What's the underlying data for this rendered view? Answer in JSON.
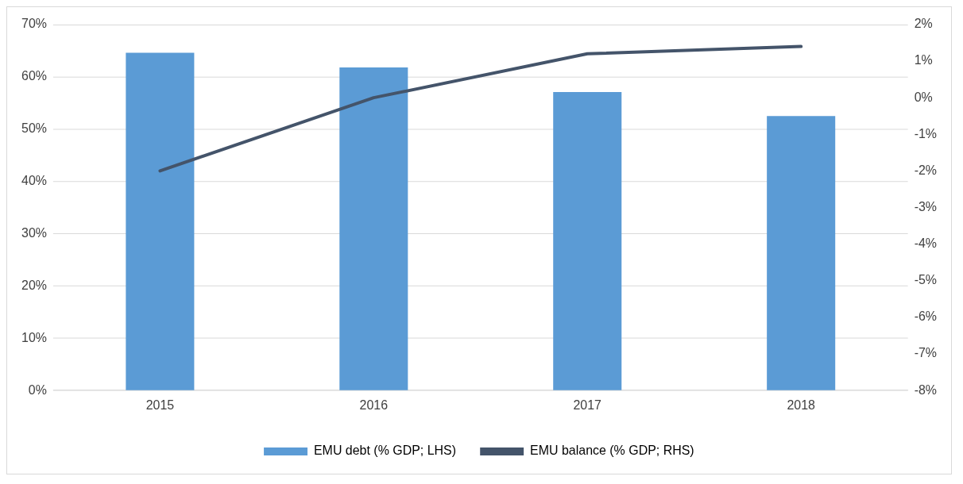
{
  "chart_data": {
    "type": "bar",
    "categories": [
      "2015",
      "2016",
      "2017",
      "2018"
    ],
    "series": [
      {
        "name": "EMU debt (% GDP; LHS)",
        "color": "#5b9bd5",
        "values": [
          64.6,
          61.8,
          57.1,
          52.5
        ]
      },
      {
        "name": "EMU balance (% GDP; RHS)",
        "type": "line",
        "axis": "y2",
        "color": "#44546a",
        "values": [
          -2.0,
          0.0,
          1.2,
          1.4
        ]
      }
    ],
    "ylim": [
      0,
      70
    ],
    "yticks": [
      {
        "value": 0,
        "label": "0%"
      },
      {
        "value": 10,
        "label": "10%"
      },
      {
        "value": 20,
        "label": "20%"
      },
      {
        "value": 30,
        "label": "30%"
      },
      {
        "value": 40,
        "label": "40%"
      },
      {
        "value": 50,
        "label": "50%"
      },
      {
        "value": 60,
        "label": "60%"
      },
      {
        "value": 70,
        "label": "70%"
      }
    ],
    "y2lim": [
      -8,
      2
    ],
    "y2ticks": [
      {
        "value": -8,
        "label": "-8%"
      },
      {
        "value": -7,
        "label": "-7%"
      },
      {
        "value": -6,
        "label": "-6%"
      },
      {
        "value": -5,
        "label": "-5%"
      },
      {
        "value": -4,
        "label": "-4%"
      },
      {
        "value": -3,
        "label": "-3%"
      },
      {
        "value": -2,
        "label": "-2%"
      },
      {
        "value": -1,
        "label": "-1%"
      },
      {
        "value": 0,
        "label": "0%"
      },
      {
        "value": 1,
        "label": "1%"
      },
      {
        "value": 2,
        "label": "2%"
      }
    ],
    "grid": "y",
    "legend": "bottom",
    "marker": "none",
    "line_style": "solid"
  }
}
